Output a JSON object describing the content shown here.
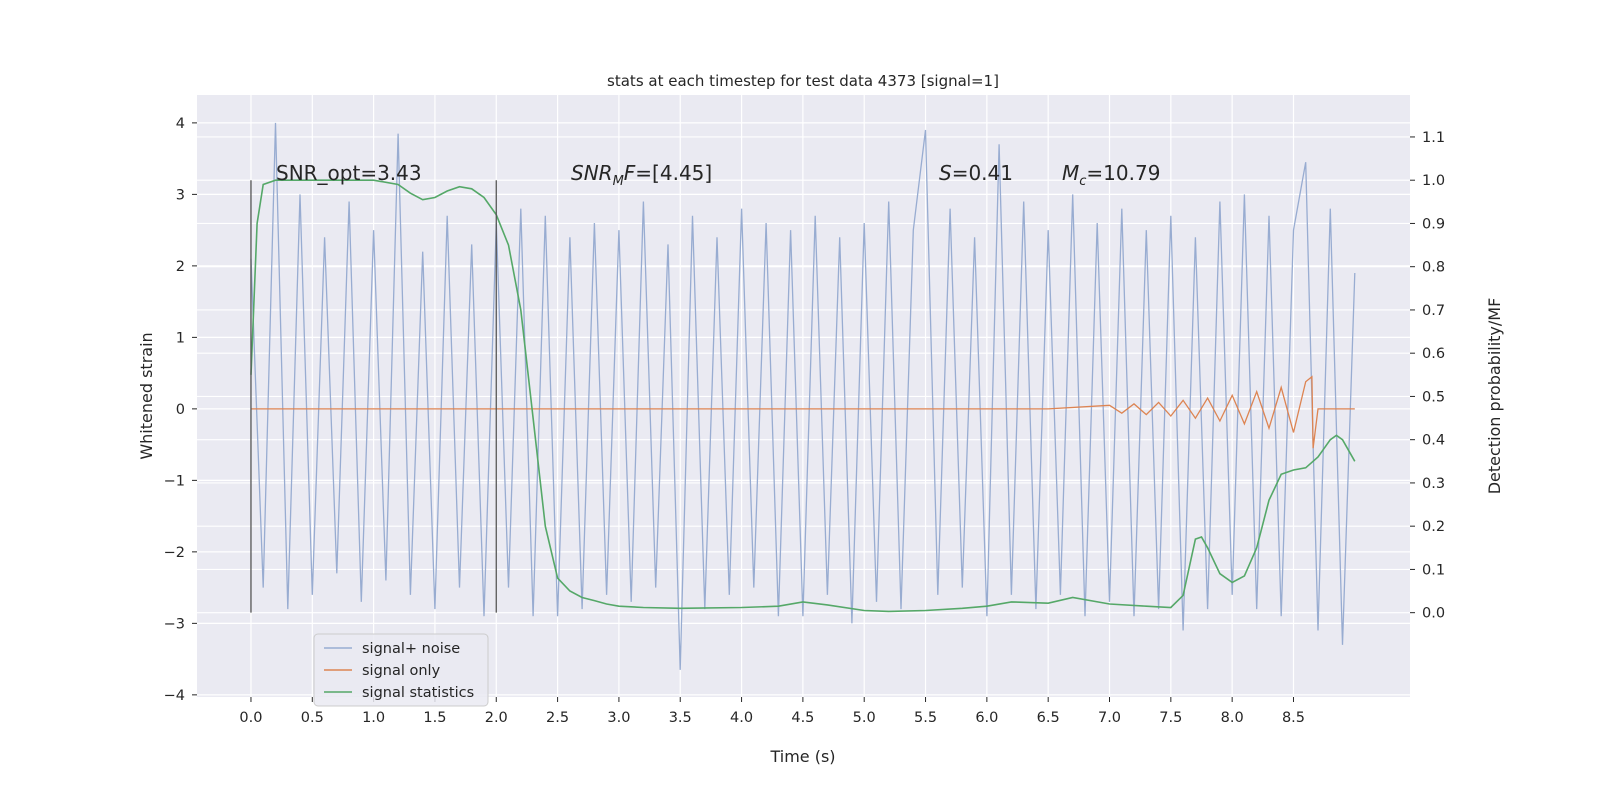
{
  "chart_data": {
    "type": "line",
    "title": "stats at each timestep for test data 4373 [signal=1]",
    "xlabel": "Time (s)",
    "ylabel": "Whitened strain",
    "y2label": "Detection probability/MF",
    "xlim": [
      -0.44,
      9.45
    ],
    "ylim": [
      -4.03,
      4.39
    ],
    "y2lim": [
      -0.195,
      1.197
    ],
    "xticks": [
      {
        "value": 0,
        "label": "0.0"
      },
      0.5,
      {
        "value": 1,
        "label": "1.0"
      },
      1.5,
      {
        "value": 2,
        "label": "2.0"
      },
      2.5,
      {
        "value": 3,
        "label": "3.0"
      },
      3.5,
      {
        "value": 4,
        "label": "4.0"
      },
      4.5,
      {
        "value": 5,
        "label": "5.0"
      },
      5.5,
      {
        "value": 6,
        "label": "6.0"
      },
      6.5,
      {
        "value": 7,
        "label": "7.0"
      },
      7.5,
      {
        "value": 8,
        "label": "8.0"
      },
      8.5
    ],
    "yticks": [
      {
        "value": -4,
        "label": "−4"
      },
      {
        "value": -3,
        "label": "−3"
      },
      {
        "value": -2,
        "label": "−2"
      },
      {
        "value": -1,
        "label": "−1"
      },
      0,
      1,
      2,
      3,
      4
    ],
    "y2ticks": [
      {
        "value": 0,
        "label": "0.0"
      },
      0.1,
      0.2,
      0.3,
      0.4,
      0.5,
      0.6,
      0.7,
      0.8,
      0.9,
      {
        "value": 1,
        "label": "1.0"
      },
      1.1
    ],
    "grid": true,
    "vlines": [
      0,
      2.0
    ],
    "vline_range": [
      0,
      1
    ],
    "annotations": [
      [
        {
          "text": "SNR_opt=3.43",
          "style": "normal"
        }
      ],
      [
        {
          "text": "SNR",
          "style": "italic"
        },
        {
          "text": "M",
          "style": "sub"
        },
        {
          "text": "F",
          "style": "italic"
        },
        {
          "text": "=[4.45]",
          "style": "normal"
        }
      ],
      [
        {
          "text": "S",
          "style": "italic"
        },
        {
          "text": "=0.41",
          "style": "normal"
        }
      ],
      [
        {
          "text": "M",
          "style": "italic"
        },
        {
          "text": "c",
          "style": "sub"
        },
        {
          "text": "=10.79",
          "style": "normal"
        }
      ]
    ],
    "series": [
      {
        "name": "signal+ noise",
        "color": "#98acd1",
        "axis": "y",
        "x": [
          0,
          0.1,
          0.2,
          0.3,
          0.4,
          0.5,
          0.6,
          0.7,
          0.8,
          0.9,
          1,
          1.1,
          1.2,
          1.3,
          1.4,
          1.5,
          1.6,
          1.7,
          1.8,
          1.9,
          2,
          2.1,
          2.2,
          2.3,
          2.4,
          2.5,
          2.6,
          2.7,
          2.8,
          2.9,
          3,
          3.1,
          3.2,
          3.3,
          3.4,
          3.5,
          3.6,
          3.7,
          3.8,
          3.9,
          4,
          4.1,
          4.2,
          4.3,
          4.4,
          4.5,
          4.6,
          4.7,
          4.8,
          4.9,
          5,
          5.1,
          5.2,
          5.3,
          5.4,
          5.5,
          5.6,
          5.7,
          5.8,
          5.9,
          6,
          6.1,
          6.2,
          6.3,
          6.4,
          6.5,
          6.6,
          6.7,
          6.8,
          6.9,
          7,
          7.1,
          7.2,
          7.3,
          7.4,
          7.5,
          7.6,
          7.7,
          7.8,
          7.9,
          8,
          8.1,
          8.2,
          8.3,
          8.4,
          8.5,
          8.6,
          8.7,
          8.8,
          8.9,
          9
        ],
        "values": [
          2.1,
          -2.5,
          4.0,
          -2.8,
          3.0,
          -2.6,
          2.4,
          -2.3,
          2.9,
          -2.7,
          2.5,
          -2.4,
          3.85,
          -2.6,
          2.2,
          -2.8,
          2.7,
          -2.5,
          2.3,
          -2.9,
          2.6,
          -2.5,
          2.8,
          -2.9,
          2.7,
          -2.9,
          2.4,
          -2.8,
          2.6,
          -2.6,
          2.5,
          -2.7,
          2.9,
          -2.5,
          2.3,
          -3.65,
          2.7,
          -2.8,
          2.4,
          -2.6,
          2.8,
          -2.5,
          2.6,
          -2.9,
          2.5,
          -2.9,
          2.7,
          -2.6,
          2.4,
          -3.0,
          2.6,
          -2.7,
          2.9,
          -2.8,
          2.5,
          3.9,
          -2.6,
          2.8,
          -2.5,
          2.4,
          -2.9,
          3.7,
          -2.6,
          2.9,
          -2.8,
          2.5,
          -2.6,
          3.0,
          -2.9,
          2.6,
          -2.7,
          2.8,
          -2.9,
          2.5,
          -2.8,
          2.7,
          -3.1,
          2.4,
          -2.8,
          2.9,
          -2.6,
          3.0,
          -2.8,
          2.7,
          -2.9,
          2.5,
          3.45,
          -3.1,
          2.8,
          -3.3,
          1.9
        ]
      },
      {
        "name": "signal only",
        "color": "#dd8452",
        "axis": "y",
        "x": [
          0,
          6.5,
          7.0,
          7.1,
          7.2,
          7.3,
          7.4,
          7.5,
          7.6,
          7.7,
          7.8,
          7.9,
          8.0,
          8.1,
          8.2,
          8.3,
          8.4,
          8.5,
          8.6,
          8.65,
          8.66,
          8.7,
          9.0
        ],
        "values": [
          0,
          0,
          0.05,
          -0.06,
          0.07,
          -0.08,
          0.09,
          -0.1,
          0.12,
          -0.13,
          0.15,
          -0.17,
          0.19,
          -0.21,
          0.24,
          -0.27,
          0.3,
          -0.33,
          0.38,
          0.45,
          -0.55,
          0,
          0
        ]
      },
      {
        "name": "signal statistics",
        "color": "#55a868",
        "axis": "y2",
        "x": [
          0,
          0.05,
          0.1,
          0.2,
          0.5,
          0.9,
          1.0,
          1.2,
          1.3,
          1.4,
          1.5,
          1.6,
          1.7,
          1.8,
          1.9,
          2.0,
          2.1,
          2.2,
          2.3,
          2.4,
          2.5,
          2.6,
          2.7,
          2.8,
          2.9,
          3.0,
          3.2,
          3.5,
          4.0,
          4.3,
          4.5,
          4.7,
          5.0,
          5.2,
          5.5,
          5.8,
          6.0,
          6.2,
          6.5,
          6.7,
          7.0,
          7.3,
          7.5,
          7.6,
          7.7,
          7.75,
          7.8,
          7.9,
          8.0,
          8.1,
          8.2,
          8.3,
          8.4,
          8.5,
          8.6,
          8.7,
          8.8,
          8.85,
          8.9,
          9.0
        ],
        "values": [
          0.55,
          0.9,
          0.99,
          1.0,
          1.0,
          1.0,
          1.0,
          0.99,
          0.97,
          0.955,
          0.96,
          0.975,
          0.985,
          0.98,
          0.96,
          0.92,
          0.85,
          0.7,
          0.45,
          0.2,
          0.08,
          0.05,
          0.035,
          0.028,
          0.02,
          0.015,
          0.012,
          0.01,
          0.012,
          0.015,
          0.025,
          0.018,
          0.005,
          0.003,
          0.005,
          0.01,
          0.015,
          0.025,
          0.022,
          0.035,
          0.02,
          0.015,
          0.012,
          0.04,
          0.17,
          0.175,
          0.15,
          0.09,
          0.07,
          0.085,
          0.15,
          0.26,
          0.32,
          0.33,
          0.335,
          0.36,
          0.4,
          0.41,
          0.4,
          0.35
        ]
      }
    ]
  }
}
